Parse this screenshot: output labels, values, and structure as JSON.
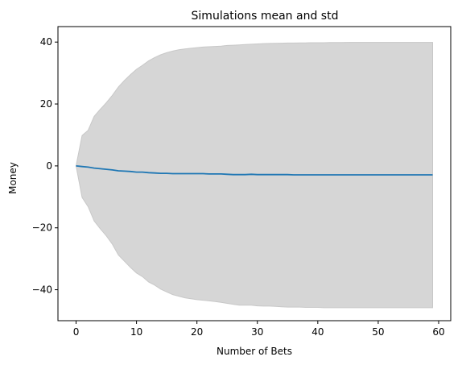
{
  "chart_data": {
    "type": "line",
    "title": "Simulations mean and std",
    "xlabel": "Number of Bets",
    "ylabel": "Money",
    "xlim": [
      -3,
      62
    ],
    "ylim": [
      -50,
      45
    ],
    "xticks": [
      0,
      10,
      20,
      30,
      40,
      50,
      60
    ],
    "yticks": [
      -40,
      -20,
      0,
      20,
      40
    ],
    "ytick_labels": [
      "−40",
      "−20",
      "0",
      "20",
      "40"
    ],
    "grid": false,
    "colors": {
      "mean_line": "#1f77b4",
      "std_band": "#c8c8c8"
    },
    "series": [
      {
        "x": [
          0,
          1,
          2,
          3,
          4,
          5,
          6,
          7,
          8,
          9,
          10,
          11,
          12,
          13,
          14,
          15,
          16,
          17,
          18,
          19,
          20,
          21,
          22,
          23,
          24,
          25,
          26,
          27,
          28,
          29,
          30,
          31,
          32,
          33,
          34,
          35,
          36,
          37,
          38,
          39,
          40,
          41,
          42,
          43,
          44,
          45,
          46,
          47,
          48,
          49,
          50,
          51,
          52,
          53,
          54,
          55,
          56,
          57,
          58,
          59
        ],
        "mean": [
          0,
          -0.2,
          -0.4,
          -0.7,
          -0.9,
          -1.1,
          -1.3,
          -1.6,
          -1.7,
          -1.8,
          -2.0,
          -2.0,
          -2.2,
          -2.3,
          -2.4,
          -2.4,
          -2.5,
          -2.5,
          -2.5,
          -2.5,
          -2.5,
          -2.5,
          -2.6,
          -2.6,
          -2.6,
          -2.7,
          -2.8,
          -2.8,
          -2.8,
          -2.7,
          -2.8,
          -2.8,
          -2.8,
          -2.8,
          -2.8,
          -2.8,
          -2.9,
          -2.9,
          -2.9,
          -2.9,
          -2.9,
          -2.9,
          -2.9,
          -2.9,
          -2.9,
          -2.9,
          -2.9,
          -2.9,
          -2.9,
          -2.9,
          -2.9,
          -2.9,
          -2.9,
          -2.9,
          -2.9,
          -2.9,
          -2.9,
          -2.9,
          -2.9,
          -2.9
        ],
        "upper": [
          0,
          9.8,
          11.5,
          16.0,
          18.3,
          20.4,
          22.8,
          25.5,
          27.6,
          29.5,
          31.2,
          32.5,
          33.9,
          35.0,
          35.9,
          36.6,
          37.1,
          37.5,
          37.8,
          38.0,
          38.2,
          38.4,
          38.5,
          38.6,
          38.7,
          38.9,
          39.0,
          39.1,
          39.2,
          39.3,
          39.4,
          39.5,
          39.55,
          39.6,
          39.65,
          39.7,
          39.7,
          39.75,
          39.75,
          39.8,
          39.8,
          39.8,
          39.85,
          39.85,
          39.85,
          39.9,
          39.9,
          39.9,
          39.9,
          39.9,
          39.9,
          39.9,
          39.9,
          39.9,
          39.9,
          39.9,
          39.9,
          39.9,
          39.9,
          39.9
        ],
        "lower": [
          0,
          -10.2,
          -13.2,
          -17.8,
          -20.3,
          -22.6,
          -25.3,
          -28.8,
          -30.8,
          -32.8,
          -34.6,
          -35.8,
          -37.5,
          -38.5,
          -39.8,
          -40.7,
          -41.6,
          -42.1,
          -42.6,
          -42.9,
          -43.2,
          -43.4,
          -43.6,
          -43.8,
          -44.1,
          -44.4,
          -44.7,
          -45.0,
          -45.0,
          -45.0,
          -45.2,
          -45.3,
          -45.3,
          -45.4,
          -45.5,
          -45.6,
          -45.6,
          -45.6,
          -45.7,
          -45.7,
          -45.7,
          -45.8,
          -45.8,
          -45.8,
          -45.8,
          -45.8,
          -45.8,
          -45.8,
          -45.8,
          -45.8,
          -45.8,
          -45.8,
          -45.8,
          -45.8,
          -45.8,
          -45.8,
          -45.8,
          -45.8,
          -45.8,
          -45.8
        ]
      }
    ]
  }
}
